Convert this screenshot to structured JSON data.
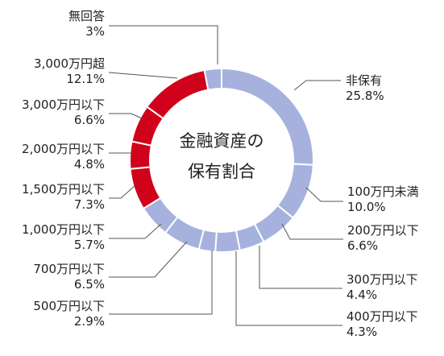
{
  "chart_data": {
    "type": "donut",
    "center_title_lines": [
      "金融資産の",
      "保有割合"
    ],
    "unit": "%",
    "slices": [
      {
        "name": "非保有",
        "value": 25.8,
        "label": "25.8%",
        "color": "#a6b2dd"
      },
      {
        "name": "100万円未満",
        "value": 10.0,
        "label": "10.0%",
        "color": "#a6b2dd"
      },
      {
        "name": "200万円以下",
        "value": 6.6,
        "label": "6.6%",
        "color": "#a6b2dd"
      },
      {
        "name": "300万円以下",
        "value": 4.4,
        "label": "4.4%",
        "color": "#a6b2dd"
      },
      {
        "name": "400万円以下",
        "value": 4.3,
        "label": "4.3%",
        "color": "#a6b2dd"
      },
      {
        "name": "500万円以下",
        "value": 2.9,
        "label": "2.9%",
        "color": "#a6b2dd"
      },
      {
        "name": "700万円以下",
        "value": 6.5,
        "label": "6.5%",
        "color": "#a6b2dd"
      },
      {
        "name": "1,000万円以下",
        "value": 5.7,
        "label": "5.7%",
        "color": "#a6b2dd"
      },
      {
        "name": "1,500万円以下",
        "value": 7.3,
        "label": "7.3%",
        "color": "#d0021b"
      },
      {
        "name": "2,000万円以下",
        "value": 4.8,
        "label": "4.8%",
        "color": "#d0021b"
      },
      {
        "name": "3,000万円以下",
        "value": 6.6,
        "label": "6.6%",
        "color": "#d0021b"
      },
      {
        "name": "3,000万円超",
        "value": 12.1,
        "label": "12.1%",
        "color": "#d0021b"
      },
      {
        "name": "無回答",
        "value": 3,
        "label": "3%",
        "color": "#a6b2dd"
      }
    ]
  }
}
